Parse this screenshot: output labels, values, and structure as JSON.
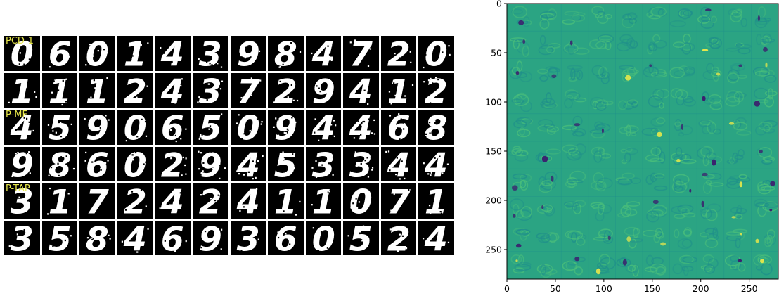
{
  "chart_data": [
    {
      "type": "image-grid",
      "rows": 6,
      "cols": 12,
      "groups": [
        {
          "label": "PCD-1",
          "rows": [
            [
              "0",
              "6",
              "0",
              "1",
              "4",
              "3",
              "9",
              "8",
              "4",
              "7",
              "2",
              "0"
            ],
            [
              "1",
              "1",
              "1",
              "2",
              "4",
              "3",
              "7",
              "2",
              "9",
              "4",
              "1",
              "2"
            ]
          ]
        },
        {
          "label": "P-MF",
          "rows": [
            [
              "4",
              "5",
              "9",
              "0",
              "6",
              "5",
              "0",
              "9",
              "4",
              "4",
              "6",
              "8"
            ],
            [
              "9",
              "8",
              "6",
              "0",
              "2",
              "9",
              "4",
              "5",
              "3",
              "3",
              "4",
              "4"
            ]
          ]
        },
        {
          "label": "P-TAP",
          "rows": [
            [
              "3",
              "1",
              "7",
              "2",
              "4",
              "2",
              "4",
              "1",
              "1",
              "0",
              "7",
              "1"
            ],
            [
              "3",
              "5",
              "8",
              "4",
              "6",
              "9",
              "3",
              "6",
              "0",
              "5",
              "2",
              "4"
            ]
          ]
        }
      ],
      "colors": {
        "background": "#000000",
        "foreground": "#ffffff",
        "label": "#e8e84a",
        "gap": "#ffffff"
      }
    },
    {
      "type": "heatmap",
      "xlim": [
        0,
        280
      ],
      "ylim": [
        280,
        0
      ],
      "xticks": [
        "0",
        "50",
        "100",
        "150",
        "200",
        "250"
      ],
      "yticks": [
        "0",
        "50",
        "100",
        "150",
        "200",
        "250"
      ],
      "grid_tiles": 10,
      "colormap": "viridis",
      "colors": {
        "base": "#2ba483",
        "dark": "#3b1f6e",
        "light": "#e8e84a",
        "mid": "#1f8f8b"
      }
    }
  ]
}
